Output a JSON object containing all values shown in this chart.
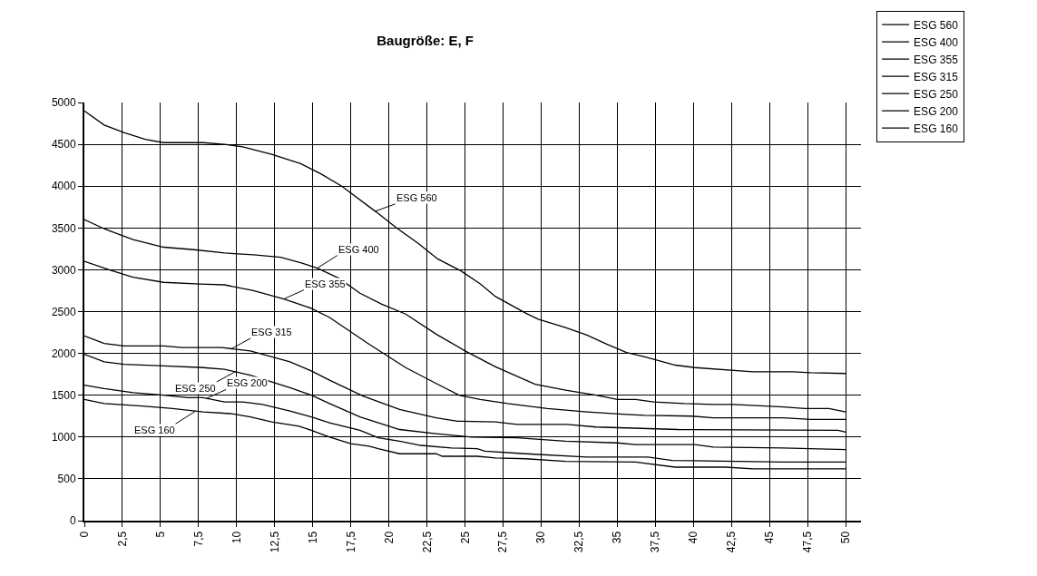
{
  "chart_data": {
    "type": "line",
    "title": "Baugröße: E, F",
    "xlim": [
      0,
      51
    ],
    "xticks": [
      0,
      {
        "value": 2.5,
        "label": "2,5"
      },
      5,
      {
        "value": 7.5,
        "label": "7,5"
      },
      10,
      {
        "value": 12.5,
        "label": "12,5"
      },
      15,
      {
        "value": 17.5,
        "label": "17,5"
      },
      20,
      {
        "value": 22.5,
        "label": "22,5"
      },
      25,
      {
        "value": 27.5,
        "label": "27,5"
      },
      30,
      {
        "value": 32.5,
        "label": "32,5"
      },
      35,
      {
        "value": 37.5,
        "label": "37,5"
      },
      40,
      {
        "value": 42.5,
        "label": "42,5"
      },
      45,
      {
        "value": 47.5,
        "label": "47,5"
      },
      50
    ],
    "ylim": [
      0,
      5000
    ],
    "yticks": [
      0,
      500,
      1000,
      1500,
      2000,
      2500,
      3000,
      3500,
      4000,
      4500,
      5000
    ],
    "grid": true,
    "legend": "top right",
    "marker": "none",
    "line_style": "solid",
    "series": [
      {
        "name": "ESG 560",
        "color": "#000000",
        "x": [
          0,
          1.3,
          2.6,
          4.0,
          5.2,
          7.8,
          9.2,
          10.4,
          12.3,
          14.2,
          15.5,
          16.9,
          19.1,
          20.5,
          21.9,
          23.2,
          24.7,
          26.0,
          27.0,
          29.0,
          29.8,
          31.6,
          33.0,
          34.3,
          35.6,
          36.8,
          38.0,
          38.8,
          40.1,
          43.9,
          46.5,
          47.7,
          50
        ],
        "values": [
          4900,
          4730,
          4640,
          4560,
          4520,
          4520,
          4500,
          4470,
          4380,
          4270,
          4150,
          4000,
          3700,
          3500,
          3320,
          3130,
          2990,
          2830,
          2680,
          2480,
          2410,
          2310,
          2220,
          2110,
          2010,
          1960,
          1900,
          1860,
          1830,
          1780,
          1780,
          1770,
          1760
        ]
      },
      {
        "name": "ESG 400",
        "color": "#000000",
        "x": [
          0,
          1.3,
          3.2,
          5.2,
          7.2,
          9.2,
          11.1,
          12.9,
          14.3,
          15.3,
          16.7,
          18.1,
          19.5,
          21.1,
          23.1,
          25.0,
          27.0,
          29.6,
          31.6,
          33.6,
          35.0,
          36.2,
          37.4,
          39.4,
          41.3,
          42.6,
          44.7,
          45.9,
          47.3,
          48.9,
          50
        ],
        "values": [
          3600,
          3490,
          3360,
          3270,
          3240,
          3200,
          3180,
          3150,
          3080,
          3020,
          2900,
          2720,
          2590,
          2470,
          2230,
          2030,
          1840,
          1630,
          1560,
          1500,
          1450,
          1450,
          1420,
          1400,
          1390,
          1390,
          1370,
          1360,
          1340,
          1340,
          1300
        ]
      },
      {
        "name": "ESG 355",
        "color": "#000000",
        "x": [
          0,
          1.8,
          3.2,
          5.2,
          7.6,
          9.2,
          11.1,
          13.1,
          14.9,
          16.1,
          18.7,
          21.1,
          23.1,
          24.6,
          26.0,
          27.8,
          30.4,
          33.0,
          35.6,
          36.8,
          39.9,
          41.3,
          45.9,
          47.7,
          50
        ],
        "values": [
          3100,
          2990,
          2910,
          2850,
          2830,
          2820,
          2750,
          2650,
          2540,
          2430,
          2110,
          1830,
          1640,
          1500,
          1450,
          1400,
          1340,
          1300,
          1270,
          1260,
          1250,
          1230,
          1230,
          1210,
          1210
        ]
      },
      {
        "name": "ESG 315",
        "color": "#000000",
        "x": [
          0,
          1.3,
          2.6,
          5.2,
          6.4,
          9.0,
          10.9,
          13.5,
          14.9,
          16.1,
          18.3,
          20.7,
          23.1,
          24.5,
          27.0,
          28.4,
          31.7,
          33.6,
          39.0,
          49.5,
          50
        ],
        "values": [
          2210,
          2120,
          2090,
          2090,
          2070,
          2070,
          2030,
          1900,
          1790,
          1680,
          1490,
          1330,
          1230,
          1190,
          1180,
          1150,
          1150,
          1120,
          1090,
          1080,
          1060
        ]
      },
      {
        "name": "ESG 250",
        "color": "#000000",
        "x": [
          0,
          1.3,
          2.6,
          5.2,
          7.8,
          9.2,
          10.9,
          13.5,
          14.9,
          16.1,
          18.1,
          20.7,
          23.1,
          25.4,
          28.4,
          31.6,
          35.0,
          36.2,
          40.1,
          41.3,
          45.9,
          50
        ],
        "values": [
          1990,
          1900,
          1870,
          1850,
          1830,
          1810,
          1740,
          1590,
          1500,
          1400,
          1240,
          1090,
          1040,
          1000,
          990,
          950,
          930,
          910,
          910,
          880,
          870,
          850
        ]
      },
      {
        "name": "ESG 200",
        "color": "#000000",
        "x": [
          0,
          1.3,
          3.2,
          5.2,
          6.8,
          7.8,
          9.2,
          10.4,
          11.7,
          13.5,
          14.9,
          16.1,
          18.1,
          19.3,
          20.7,
          22.1,
          24.1,
          25.8,
          26.3,
          29.0,
          33.0,
          37.0,
          38.6,
          45.9,
          50
        ],
        "values": [
          1620,
          1580,
          1530,
          1500,
          1470,
          1470,
          1420,
          1420,
          1390,
          1310,
          1240,
          1170,
          1080,
          990,
          950,
          900,
          870,
          860,
          830,
          800,
          760,
          760,
          720,
          700,
          700
        ]
      },
      {
        "name": "ESG 160",
        "color": "#000000",
        "x": [
          0,
          1.3,
          3.8,
          5.8,
          7.8,
          9.6,
          10.9,
          12.3,
          14.1,
          14.9,
          16.1,
          17.5,
          18.7,
          19.3,
          20.7,
          23.1,
          23.5,
          25.8,
          27.0,
          29.0,
          31.6,
          36.2,
          38.8,
          42.1,
          43.9,
          50
        ],
        "values": [
          1450,
          1400,
          1370,
          1340,
          1300,
          1280,
          1240,
          1180,
          1130,
          1080,
          1000,
          920,
          890,
          860,
          800,
          800,
          770,
          770,
          750,
          740,
          710,
          700,
          640,
          640,
          620,
          620
        ]
      }
    ],
    "annotations": [
      {
        "text": "ESG 560",
        "x": 19.1,
        "y": 3700
      },
      {
        "text": "ESG 400",
        "x": 15.3,
        "y": 3020
      },
      {
        "text": "ESG 355",
        "x": 13.1,
        "y": 2650
      },
      {
        "text": "ESG 315",
        "x": 9.6,
        "y": 2050
      },
      {
        "text": "ESG 250",
        "x": 10.0,
        "y": 1790
      },
      {
        "text": "ESG 200",
        "x": 8.0,
        "y": 1460
      },
      {
        "text": "ESG 160",
        "x": 7.3,
        "y": 1310
      }
    ]
  }
}
